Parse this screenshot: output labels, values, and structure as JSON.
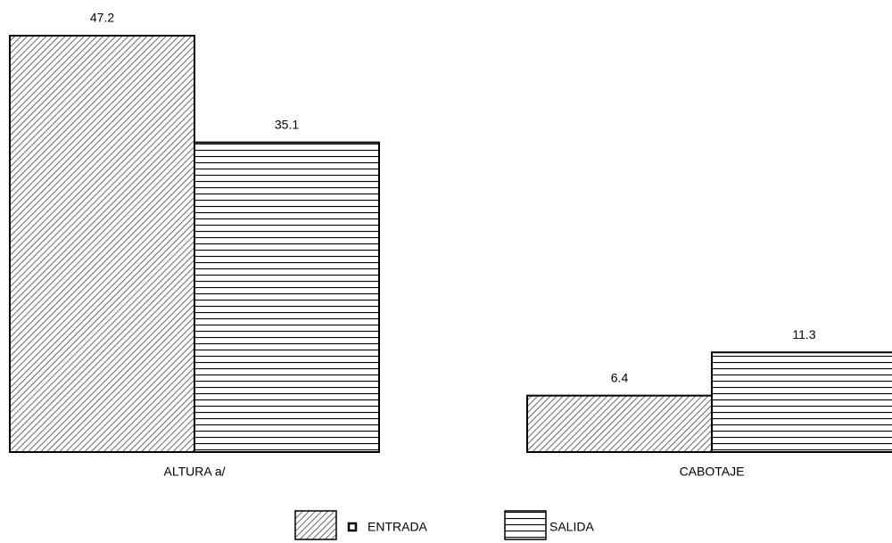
{
  "chart_data": {
    "type": "bar",
    "categories": [
      "ALTURA a/",
      "CABOTAJE"
    ],
    "series": [
      {
        "name": "ENTRADA",
        "color": "#000000",
        "pattern": "diagonal",
        "values": [
          47.2,
          6.4
        ]
      },
      {
        "name": "SALIDA",
        "color": "#000000",
        "pattern": "horizontal",
        "values": [
          35.1,
          11.3
        ]
      }
    ],
    "ylim": [
      0,
      47.2
    ],
    "grid": false
  }
}
